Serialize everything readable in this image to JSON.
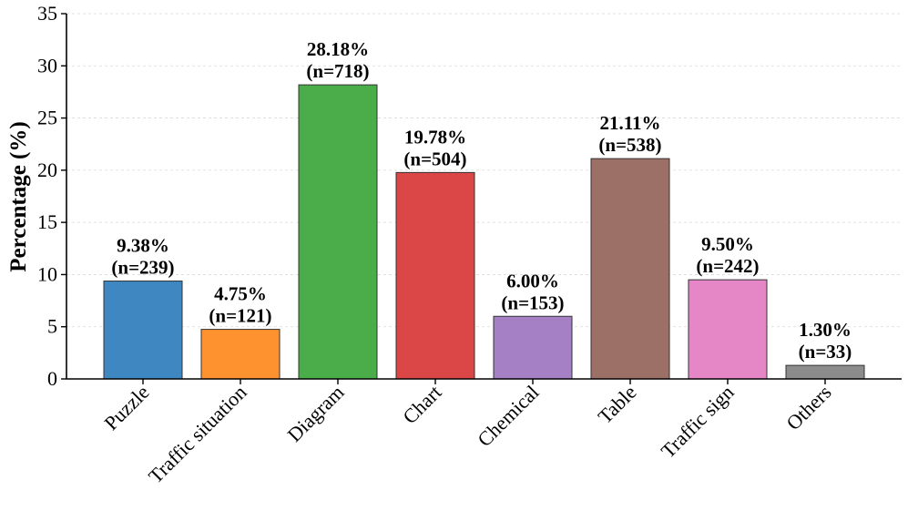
{
  "chart_data": {
    "type": "bar",
    "title": "",
    "xlabel": "",
    "ylabel": "Percentage (%)",
    "ylim": [
      0,
      35
    ],
    "yticks": [
      0,
      5,
      10,
      15,
      20,
      25,
      30,
      35
    ],
    "grid": "horizontal dashed",
    "categories": [
      "Puzzle",
      "Traffic situation",
      "Diagram",
      "Chart",
      "Chemical",
      "Table",
      "Traffic sign",
      "Others"
    ],
    "values": [
      9.38,
      4.75,
      28.18,
      19.78,
      6.0,
      21.11,
      9.5,
      1.3
    ],
    "value_labels": [
      "9.38%",
      "4.75%",
      "28.18%",
      "19.78%",
      "6.00%",
      "21.11%",
      "9.50%",
      "1.30%"
    ],
    "count_labels": [
      "(n=239)",
      "(n=121)",
      "(n=718)",
      "(n=504)",
      "(n=153)",
      "(n=538)",
      "(n=242)",
      "(n=33)"
    ],
    "colors": [
      "#3f87c0",
      "#fe922e",
      "#4aad4a",
      "#db4646",
      "#a680c5",
      "#9c6f67",
      "#e587c6",
      "#8c8c8c"
    ],
    "edge_color": "#333333"
  }
}
